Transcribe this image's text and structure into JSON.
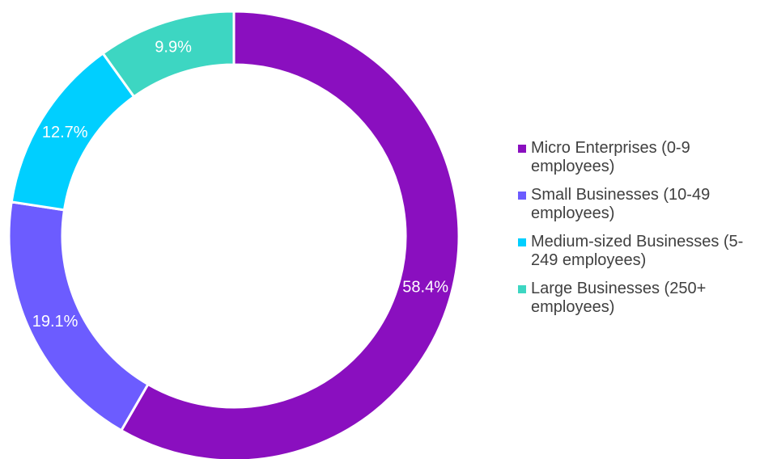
{
  "chart_data": {
    "type": "pie",
    "variant": "donut",
    "title": "",
    "categories": [
      "Micro Enterprises (0-9 employees)",
      "Small Businesses (10-49 employees)",
      "Medium-sized Businesses (5-249 employees)",
      "Large Businesses (250+ employees)"
    ],
    "values": [
      58.4,
      19.1,
      12.7,
      9.9
    ],
    "labels": [
      "58.4%",
      "19.1%",
      "12.7%",
      "9.9%"
    ],
    "colors": [
      "#8A0FBF",
      "#6C5CFF",
      "#00CFFF",
      "#3DD6C2"
    ],
    "start_angle": "12 o'clock",
    "direction": "clockwise",
    "legend": {
      "position": "right",
      "entries": [
        {
          "label": "Micro Enterprises (0-9 employees)",
          "color": "#8A0FBF"
        },
        {
          "label": "Small Businesses (10-49 employees)",
          "color": "#6C5CFF"
        },
        {
          "label": "Medium-sized Businesses (5-249 employees)",
          "color": "#00CFFF"
        },
        {
          "label": "Large Businesses (250+ employees)",
          "color": "#3DD6C2"
        }
      ]
    }
  }
}
